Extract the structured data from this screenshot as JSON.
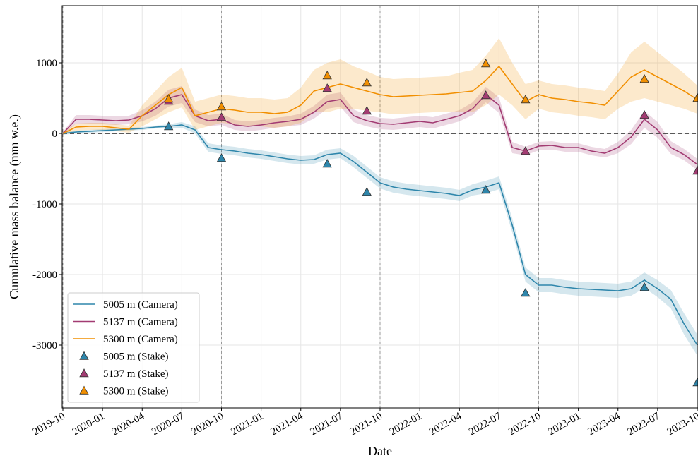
{
  "chart_data": {
    "type": "line",
    "xlabel": "Date",
    "ylabel": "Cumulative mass balance (mm w.e.)",
    "x": [
      "2019-10",
      "2019-11",
      "2019-12",
      "2020-01",
      "2020-02",
      "2020-03",
      "2020-04",
      "2020-05",
      "2020-06",
      "2020-07",
      "2020-08",
      "2020-09",
      "2020-10",
      "2020-11",
      "2020-12",
      "2021-01",
      "2021-02",
      "2021-03",
      "2021-04",
      "2021-05",
      "2021-06",
      "2021-07",
      "2021-08",
      "2021-09",
      "2021-10",
      "2021-11",
      "2021-12",
      "2022-01",
      "2022-02",
      "2022-03",
      "2022-04",
      "2022-05",
      "2022-06",
      "2022-07",
      "2022-08",
      "2022-09",
      "2022-10",
      "2022-11",
      "2022-12",
      "2023-01",
      "2023-02",
      "2023-03",
      "2023-04",
      "2023-05",
      "2023-06",
      "2023-07",
      "2023-08",
      "2023-09",
      "2023-10"
    ],
    "series": [
      {
        "name": "5005 m (Camera)",
        "color": "#2e86ab",
        "values": [
          0,
          20,
          30,
          40,
          50,
          60,
          70,
          90,
          100,
          120,
          50,
          -200,
          -230,
          -250,
          -280,
          -300,
          -330,
          -360,
          -380,
          -370,
          -300,
          -280,
          -400,
          -550,
          -700,
          -760,
          -790,
          -810,
          -830,
          -850,
          -880,
          -800,
          -760,
          -700,
          -1300,
          -2000,
          -2150,
          -2150,
          -2180,
          -2200,
          -2210,
          -2220,
          -2230,
          -2200,
          -2080,
          -2200,
          -2350,
          -2700,
          -3000
        ],
        "errors": [
          20,
          20,
          20,
          20,
          20,
          20,
          20,
          20,
          30,
          40,
          50,
          60,
          60,
          60,
          60,
          60,
          60,
          60,
          60,
          60,
          70,
          70,
          80,
          80,
          80,
          80,
          80,
          80,
          80,
          80,
          80,
          80,
          90,
          90,
          100,
          100,
          100,
          100,
          100,
          100,
          100,
          100,
          100,
          100,
          110,
          120,
          130,
          150,
          150
        ]
      },
      {
        "name": "5137 m (Camera)",
        "color": "#a23b72",
        "values": [
          0,
          200,
          200,
          190,
          180,
          190,
          250,
          350,
          500,
          550,
          250,
          180,
          200,
          120,
          100,
          120,
          150,
          170,
          200,
          300,
          450,
          480,
          250,
          180,
          140,
          130,
          150,
          170,
          150,
          200,
          250,
          350,
          550,
          400,
          -200,
          -250,
          -180,
          -170,
          -200,
          -200,
          -250,
          -280,
          -200,
          -50,
          200,
          50,
          -200,
          -300,
          -440
        ],
        "errors": [
          20,
          60,
          60,
          60,
          60,
          60,
          80,
          100,
          120,
          120,
          90,
          80,
          80,
          70,
          70,
          70,
          70,
          70,
          80,
          90,
          100,
          100,
          90,
          80,
          80,
          80,
          80,
          80,
          80,
          80,
          80,
          90,
          110,
          110,
          80,
          60,
          60,
          60,
          60,
          60,
          60,
          60,
          80,
          100,
          120,
          110,
          90,
          80,
          80
        ]
      },
      {
        "name": "5300 m (Camera)",
        "color": "#f18f01",
        "values": [
          0,
          90,
          100,
          100,
          80,
          60,
          250,
          400,
          550,
          650,
          250,
          300,
          350,
          330,
          300,
          300,
          280,
          300,
          400,
          600,
          650,
          700,
          650,
          600,
          550,
          520,
          530,
          540,
          550,
          560,
          580,
          600,
          750,
          950,
          700,
          450,
          550,
          500,
          480,
          450,
          430,
          400,
          600,
          800,
          900,
          800,
          700,
          600,
          480
        ],
        "errors": [
          20,
          50,
          50,
          50,
          50,
          50,
          150,
          200,
          250,
          280,
          200,
          200,
          200,
          200,
          200,
          200,
          200,
          200,
          250,
          300,
          350,
          350,
          300,
          280,
          250,
          250,
          250,
          250,
          250,
          250,
          280,
          300,
          350,
          400,
          300,
          250,
          200,
          200,
          200,
          200,
          200,
          200,
          250,
          350,
          400,
          350,
          300,
          250,
          200
        ]
      },
      {
        "name": "5005 m (Stake)",
        "color": "#2e86ab",
        "type": "scatter",
        "x": [
          "2020-06",
          "2020-10",
          "2021-06",
          "2021-09",
          "2022-06",
          "2022-09",
          "2023-06",
          "2023-10"
        ],
        "values": [
          100,
          -350,
          -430,
          -830,
          -800,
          -2260,
          -2180,
          -3530
        ]
      },
      {
        "name": "5137 m (Stake)",
        "color": "#a23b72",
        "type": "scatter",
        "x": [
          "2020-06",
          "2020-10",
          "2021-06",
          "2021-09",
          "2022-06",
          "2022-09",
          "2023-06",
          "2023-10"
        ],
        "values": [
          460,
          230,
          640,
          320,
          540,
          -250,
          260,
          -530
        ]
      },
      {
        "name": "5300 m (Stake)",
        "color": "#f18f01",
        "type": "scatter",
        "x": [
          "2020-06",
          "2020-10",
          "2021-06",
          "2021-09",
          "2022-06",
          "2022-09",
          "2023-06",
          "2023-10"
        ],
        "values": [
          490,
          380,
          820,
          720,
          990,
          480,
          770,
          500
        ]
      }
    ],
    "xlim": [
      "2019-10",
      "2023-10"
    ],
    "ylim": [
      -3890,
      1810
    ],
    "xticks": [
      "2019-10",
      "2020-01",
      "2020-04",
      "2020-07",
      "2020-10",
      "2021-01",
      "2021-04",
      "2021-07",
      "2021-10",
      "2022-01",
      "2022-04",
      "2022-07",
      "2022-10",
      "2023-01",
      "2023-04",
      "2023-07",
      "2023-10"
    ],
    "yticks": [
      1000,
      0,
      -1000,
      -2000,
      -3000
    ],
    "vlines": [
      "2019-10",
      "2020-10",
      "2021-10",
      "2022-10"
    ],
    "hline": 0,
    "grid": true,
    "legend": "lower-left"
  }
}
